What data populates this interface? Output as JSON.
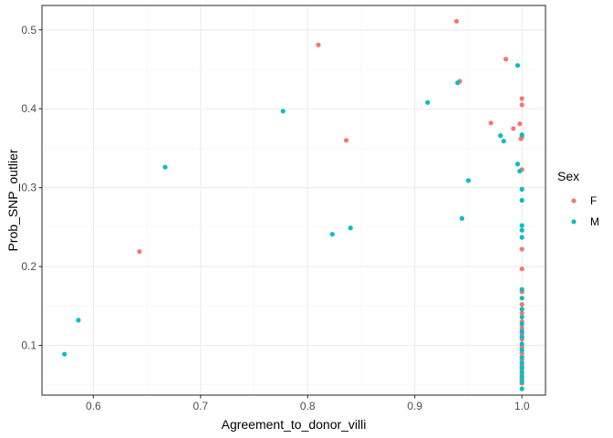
{
  "chart_data": {
    "type": "scatter",
    "xlabel": "Agreement_to_donor_villi",
    "ylabel": "Prob_SNP_outlier",
    "xlim": [
      0.552,
      1.022
    ],
    "ylim": [
      0.037,
      0.531
    ],
    "x_ticks": [
      0.6,
      0.7,
      0.8,
      0.9,
      1.0
    ],
    "x_tick_labels": [
      "0.6",
      "0.7",
      "0.8",
      "0.9",
      "1.0"
    ],
    "y_ticks": [
      0.1,
      0.2,
      0.3,
      0.4,
      0.5
    ],
    "y_tick_labels": [
      "0.1",
      "0.2",
      "0.3",
      "0.4",
      "0.5"
    ],
    "grid": true,
    "legend": {
      "title": "Sex",
      "position": "right"
    },
    "colors": {
      "F": "#F8766D",
      "M": "#00BFC4"
    },
    "series": [
      {
        "name": "F",
        "points": [
          [
            0.643,
            0.219
          ],
          [
            0.81,
            0.481
          ],
          [
            0.836,
            0.36
          ],
          [
            0.939,
            0.511
          ],
          [
            0.942,
            0.435
          ],
          [
            0.971,
            0.382
          ],
          [
            0.985,
            0.463
          ],
          [
            0.992,
            0.375
          ],
          [
            0.998,
            0.381
          ],
          [
            0.999,
            0.362
          ],
          [
            1.0,
            0.413
          ],
          [
            1.0,
            0.405
          ],
          [
            1.0,
            0.364
          ],
          [
            1.0,
            0.323
          ],
          [
            1.0,
            0.222
          ],
          [
            1.0,
            0.197
          ],
          [
            1.0,
            0.168
          ],
          [
            1.0,
            0.152
          ],
          [
            1.0,
            0.141
          ],
          [
            1.0,
            0.13
          ],
          [
            1.0,
            0.122
          ],
          [
            1.0,
            0.115
          ],
          [
            1.0,
            0.108
          ],
          [
            1.0,
            0.098
          ],
          [
            1.0,
            0.09
          ],
          [
            1.0,
            0.082
          ],
          [
            1.0,
            0.075
          ],
          [
            1.0,
            0.07
          ],
          [
            1.0,
            0.063
          ],
          [
            1.0,
            0.057
          ],
          [
            1.0,
            0.052
          ]
        ]
      },
      {
        "name": "M",
        "points": [
          [
            0.573,
            0.089
          ],
          [
            0.586,
            0.132
          ],
          [
            0.667,
            0.326
          ],
          [
            0.777,
            0.397
          ],
          [
            0.823,
            0.241
          ],
          [
            0.84,
            0.249
          ],
          [
            0.912,
            0.408
          ],
          [
            0.94,
            0.433
          ],
          [
            0.944,
            0.261
          ],
          [
            0.95,
            0.309
          ],
          [
            0.98,
            0.366
          ],
          [
            0.983,
            0.359
          ],
          [
            0.996,
            0.455
          ],
          [
            0.996,
            0.33
          ],
          [
            0.998,
            0.321
          ],
          [
            1.0,
            0.367
          ],
          [
            1.0,
            0.298
          ],
          [
            1.0,
            0.284
          ],
          [
            1.0,
            0.252
          ],
          [
            1.0,
            0.246
          ],
          [
            1.0,
            0.237
          ],
          [
            1.0,
            0.171
          ],
          [
            1.0,
            0.16
          ],
          [
            1.0,
            0.146
          ],
          [
            1.0,
            0.136
          ],
          [
            1.0,
            0.127
          ],
          [
            1.0,
            0.118
          ],
          [
            1.0,
            0.111
          ],
          [
            1.0,
            0.102
          ],
          [
            1.0,
            0.094
          ],
          [
            1.0,
            0.085
          ],
          [
            1.0,
            0.078
          ],
          [
            1.0,
            0.072
          ],
          [
            1.0,
            0.066
          ],
          [
            1.0,
            0.06
          ],
          [
            1.0,
            0.054
          ],
          [
            1.0,
            0.045
          ]
        ]
      }
    ]
  }
}
